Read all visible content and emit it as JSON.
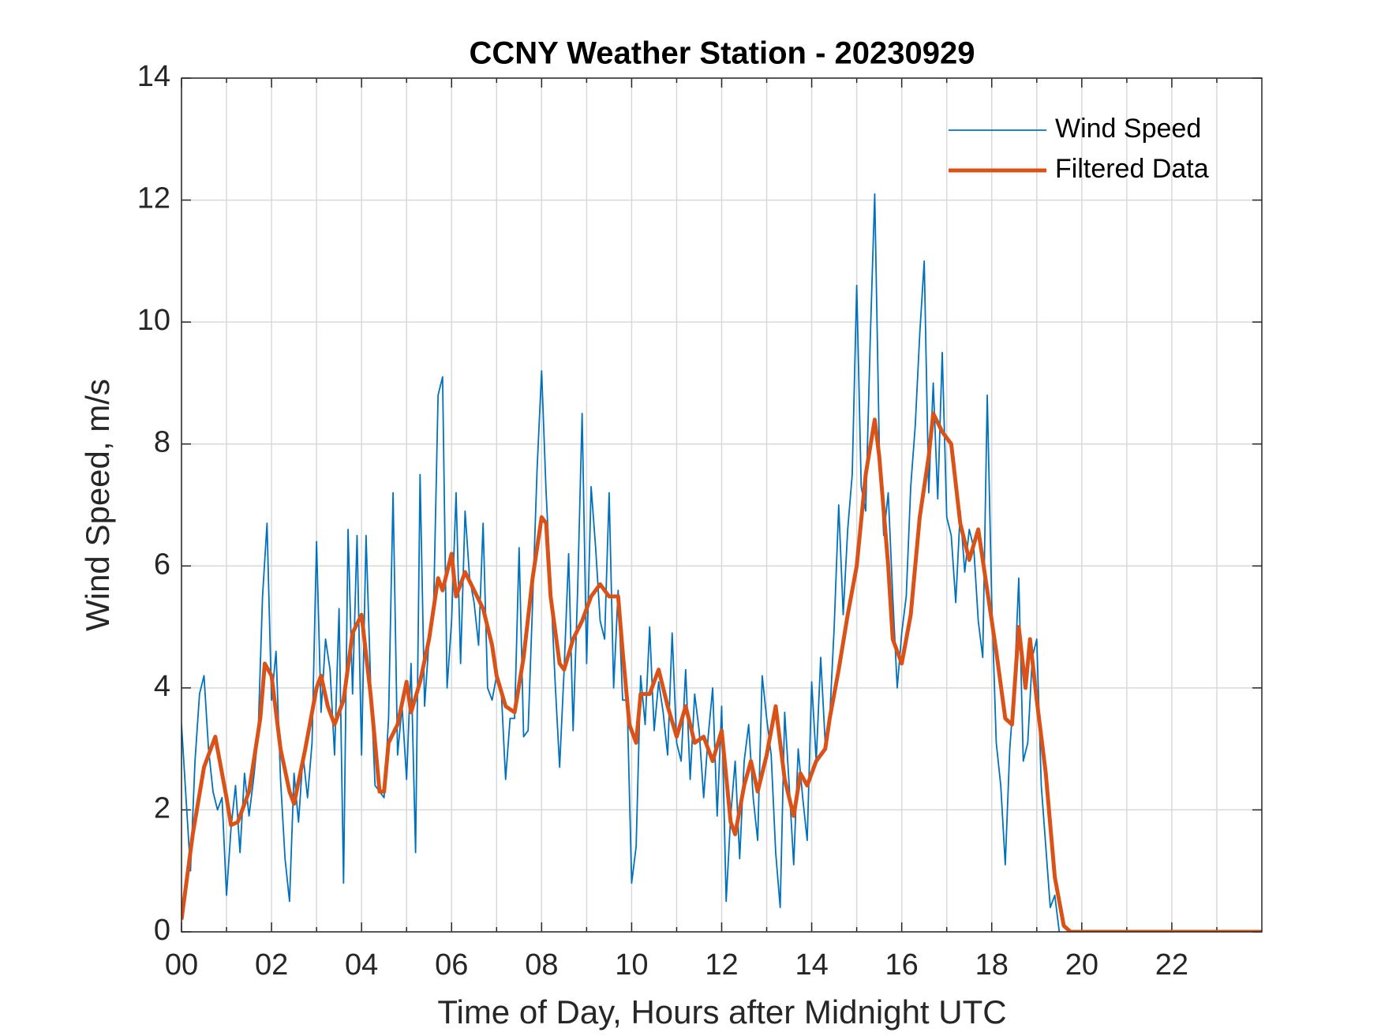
{
  "chart_data": {
    "type": "line",
    "title": "CCNY Weather Station - 20230929",
    "x_label": "Time of Day, Hours after Midnight UTC",
    "y_label": "Wind Speed, m/s",
    "xlim": [
      0,
      24
    ],
    "ylim": [
      0,
      14
    ],
    "xticks": [
      {
        "value": 0,
        "label": "00"
      },
      {
        "value": 2,
        "label": "02"
      },
      {
        "value": 4,
        "label": "04"
      },
      {
        "value": 6,
        "label": "06"
      },
      {
        "value": 8,
        "label": "08"
      },
      {
        "value": 10,
        "label": "10"
      },
      {
        "value": 12,
        "label": "12"
      },
      {
        "value": 14,
        "label": "14"
      },
      {
        "value": 16,
        "label": "16"
      },
      {
        "value": 18,
        "label": "18"
      },
      {
        "value": 20,
        "label": "20"
      },
      {
        "value": 22,
        "label": "22"
      }
    ],
    "x_minor_ticks": [
      1,
      3,
      5,
      7,
      9,
      11,
      13,
      15,
      17,
      19,
      21,
      23
    ],
    "yticks": [
      0,
      2,
      4,
      6,
      8,
      10,
      12,
      14
    ],
    "grid": true,
    "legend_position": "upper right",
    "series": [
      {
        "name": "Wind Speed",
        "color": "#0072BD",
        "x": [
          0,
          0.1,
          0.2,
          0.3,
          0.4,
          0.5,
          0.6,
          0.7,
          0.8,
          0.9,
          1,
          1.1,
          1.2,
          1.3,
          1.4,
          1.5,
          1.6,
          1.7,
          1.8,
          1.9,
          2,
          2.1,
          2.2,
          2.3,
          2.4,
          2.5,
          2.6,
          2.7,
          2.8,
          2.9,
          3,
          3.1,
          3.2,
          3.3,
          3.4,
          3.5,
          3.6,
          3.7,
          3.8,
          3.9,
          4,
          4.1,
          4.2,
          4.3,
          4.4,
          4.5,
          4.6,
          4.7,
          4.8,
          4.9,
          5,
          5.1,
          5.2,
          5.3,
          5.4,
          5.5,
          5.6,
          5.7,
          5.8,
          5.9,
          6,
          6.1,
          6.2,
          6.3,
          6.4,
          6.5,
          6.6,
          6.7,
          6.8,
          6.9,
          7,
          7.1,
          7.2,
          7.3,
          7.4,
          7.5,
          7.6,
          7.7,
          7.8,
          7.9,
          8,
          8.1,
          8.2,
          8.3,
          8.4,
          8.5,
          8.6,
          8.7,
          8.8,
          8.9,
          9,
          9.1,
          9.2,
          9.3,
          9.4,
          9.5,
          9.6,
          9.7,
          9.8,
          9.9,
          10,
          10.1,
          10.2,
          10.3,
          10.4,
          10.5,
          10.6,
          10.7,
          10.8,
          10.9,
          11,
          11.1,
          11.2,
          11.3,
          11.4,
          11.5,
          11.6,
          11.7,
          11.8,
          11.9,
          12,
          12.1,
          12.2,
          12.3,
          12.4,
          12.5,
          12.6,
          12.7,
          12.8,
          12.9,
          13,
          13.1,
          13.2,
          13.3,
          13.4,
          13.5,
          13.6,
          13.7,
          13.8,
          13.9,
          14,
          14.1,
          14.2,
          14.3,
          14.4,
          14.5,
          14.6,
          14.7,
          14.8,
          14.9,
          15,
          15.1,
          15.2,
          15.3,
          15.4,
          15.5,
          15.6,
          15.7,
          15.8,
          15.9,
          16,
          16.1,
          16.2,
          16.3,
          16.4,
          16.5,
          16.6,
          16.7,
          16.8,
          16.9,
          17,
          17.1,
          17.2,
          17.3,
          17.4,
          17.5,
          17.6,
          17.7,
          17.8,
          17.9,
          18,
          18.1,
          18.2,
          18.3,
          18.4,
          18.5,
          18.6,
          18.7,
          18.8,
          18.9,
          19,
          19.1,
          19.2,
          19.3,
          19.4,
          19.5
        ],
        "values": [
          3.4,
          2.2,
          1.0,
          2.8,
          3.9,
          4.2,
          3.0,
          2.3,
          2.0,
          2.2,
          0.6,
          1.7,
          2.4,
          1.3,
          2.6,
          1.9,
          2.5,
          3.2,
          5.5,
          6.7,
          3.8,
          4.6,
          2.5,
          1.2,
          0.5,
          2.6,
          1.8,
          2.9,
          2.2,
          3.1,
          6.4,
          3.6,
          4.8,
          4.3,
          2.9,
          5.3,
          0.8,
          6.6,
          3.9,
          6.5,
          2.9,
          6.5,
          4.1,
          2.4,
          2.3,
          2.2,
          3.5,
          7.2,
          2.9,
          3.7,
          2.5,
          4.4,
          1.3,
          7.5,
          3.7,
          4.8,
          5.3,
          8.8,
          9.1,
          4.0,
          5.1,
          7.2,
          4.4,
          6.9,
          5.8,
          5.4,
          4.7,
          6.7,
          4.0,
          3.8,
          4.2,
          4.0,
          2.5,
          3.5,
          3.5,
          6.3,
          3.2,
          3.3,
          5.4,
          7.6,
          9.2,
          7.2,
          5.7,
          4.1,
          2.7,
          4.3,
          6.2,
          3.3,
          5.6,
          8.5,
          4.4,
          7.3,
          6.3,
          5.1,
          4.8,
          7.2,
          4.0,
          5.6,
          3.8,
          3.8,
          0.8,
          1.4,
          4.2,
          3.4,
          5.0,
          3.3,
          4.1,
          3.6,
          2.9,
          4.9,
          3.1,
          2.8,
          4.3,
          2.5,
          3.9,
          3.3,
          2.2,
          3.2,
          4.0,
          1.9,
          3.7,
          0.5,
          1.9,
          2.8,
          1.2,
          2.8,
          3.4,
          2.2,
          1.5,
          4.2,
          3.5,
          2.9,
          1.3,
          0.4,
          3.6,
          2.4,
          1.1,
          3.0,
          2.2,
          1.5,
          4.1,
          2.8,
          4.5,
          3.1,
          3.5,
          5.0,
          7.0,
          5.2,
          6.6,
          7.5,
          10.6,
          7.3,
          6.9,
          9.7,
          12.1,
          8.0,
          6.5,
          7.2,
          5.5,
          4.0,
          4.9,
          5.5,
          7.3,
          8.3,
          9.8,
          11.0,
          7.2,
          9.0,
          7.1,
          9.5,
          6.8,
          6.5,
          5.4,
          6.9,
          5.9,
          6.6,
          6.3,
          5.1,
          4.5,
          8.8,
          5.4,
          3.1,
          2.4,
          1.1,
          3.0,
          4.0,
          5.8,
          2.8,
          3.1,
          4.5,
          4.8,
          2.4,
          1.4,
          0.4,
          0.6,
          0.0
        ]
      },
      {
        "name": "Filtered Data",
        "color": "#D95319",
        "x": [
          0,
          0.25,
          0.5,
          0.75,
          1.0,
          1.1,
          1.25,
          1.5,
          1.75,
          1.85,
          2.0,
          2.2,
          2.4,
          2.5,
          2.75,
          3.0,
          3.1,
          3.25,
          3.4,
          3.6,
          3.8,
          4.0,
          4.2,
          4.4,
          4.5,
          4.6,
          4.8,
          5.0,
          5.1,
          5.3,
          5.5,
          5.7,
          5.8,
          6.0,
          6.1,
          6.3,
          6.5,
          6.7,
          6.9,
          7.0,
          7.2,
          7.4,
          7.6,
          7.8,
          8.0,
          8.1,
          8.2,
          8.4,
          8.5,
          8.7,
          8.9,
          9.1,
          9.3,
          9.5,
          9.7,
          9.8,
          9.95,
          10.1,
          10.2,
          10.4,
          10.6,
          10.8,
          11.0,
          11.2,
          11.4,
          11.6,
          11.8,
          12.0,
          12.2,
          12.3,
          12.5,
          12.65,
          12.8,
          13.0,
          13.2,
          13.4,
          13.6,
          13.75,
          13.9,
          14.1,
          14.3,
          14.4,
          14.6,
          14.8,
          15.0,
          15.2,
          15.4,
          15.5,
          15.7,
          15.8,
          16.0,
          16.2,
          16.4,
          16.6,
          16.7,
          16.9,
          17.1,
          17.3,
          17.5,
          17.7,
          17.9,
          18.1,
          18.3,
          18.45,
          18.6,
          18.75,
          18.85,
          19.0,
          19.2,
          19.4,
          19.6,
          19.75,
          21,
          24
        ],
        "values": [
          0.2,
          1.6,
          2.7,
          3.2,
          2.2,
          1.75,
          1.8,
          2.3,
          3.5,
          4.4,
          4.2,
          3.0,
          2.3,
          2.1,
          3.0,
          4.0,
          4.2,
          3.7,
          3.4,
          3.8,
          4.9,
          5.2,
          3.9,
          2.3,
          2.3,
          3.1,
          3.4,
          4.1,
          3.6,
          4.1,
          4.8,
          5.8,
          5.6,
          6.2,
          5.5,
          5.9,
          5.6,
          5.3,
          4.7,
          4.2,
          3.7,
          3.6,
          4.5,
          5.8,
          6.8,
          6.7,
          5.5,
          4.4,
          4.3,
          4.8,
          5.1,
          5.5,
          5.7,
          5.5,
          5.5,
          4.6,
          3.4,
          3.1,
          3.9,
          3.9,
          4.3,
          3.7,
          3.2,
          3.7,
          3.1,
          3.2,
          2.8,
          3.3,
          1.8,
          1.6,
          2.4,
          2.8,
          2.3,
          2.9,
          3.7,
          2.5,
          1.9,
          2.6,
          2.4,
          2.8,
          3.0,
          3.5,
          4.3,
          5.2,
          6.0,
          7.5,
          8.4,
          7.8,
          6.0,
          4.8,
          4.4,
          5.2,
          6.8,
          7.8,
          8.5,
          8.2,
          8.0,
          6.7,
          6.1,
          6.6,
          5.6,
          4.6,
          3.5,
          3.4,
          5.0,
          4.0,
          4.8,
          3.8,
          2.6,
          0.9,
          0.1,
          0.0,
          0.0,
          0.0
        ]
      }
    ]
  }
}
